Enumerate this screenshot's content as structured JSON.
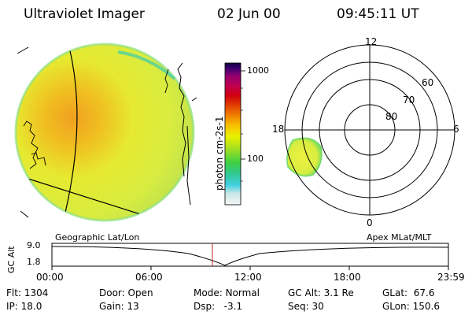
{
  "header": {
    "title": "Ultraviolet Imager",
    "date": "02 Jun 00",
    "time": "09:45:11 UT"
  },
  "colorbar": {
    "unit_label": "photon cm-2s-1",
    "ticks": [
      {
        "value": 1000,
        "label": "1000"
      },
      {
        "value": 100,
        "label": "100"
      }
    ],
    "colors": [
      "#e8f0f0",
      "#c0e0e0",
      "#40d0e0",
      "#30c890",
      "#40d040",
      "#a8e020",
      "#e8f000",
      "#f8c000",
      "#f08000",
      "#e04000",
      "#d00010",
      "#c00050",
      "#900070",
      "#400070",
      "#100040"
    ]
  },
  "polar_plot": {
    "mlt_labels": {
      "top": "12",
      "left": "18",
      "right": "6",
      "bottom": "0"
    },
    "lat_labels": [
      "60",
      "70",
      "80"
    ]
  },
  "timeline": {
    "left_caption": "Geographic Lat/Lon",
    "right_caption": "Apex MLat/MLT",
    "y_axis_label": "GC Alt",
    "y_ticks": [
      "9.0",
      "1.8"
    ],
    "x_ticks": [
      "00:00",
      "06:00",
      "12:00",
      "18:00",
      "23:59"
    ],
    "current_marker_time": "09:45"
  },
  "info": {
    "flt": {
      "label": "Flt:",
      "value": "1304"
    },
    "ip": {
      "label": "IP:",
      "value": "18.0"
    },
    "door": {
      "label": "Door:",
      "value": "Open"
    },
    "gain": {
      "label": "Gain:",
      "value": "13"
    },
    "mode": {
      "label": "Mode:",
      "value": "Normal"
    },
    "dsp": {
      "label": "Dsp:",
      "value": "-3.1"
    },
    "gcalt": {
      "label": "GC Alt:",
      "value": "3.1 Re"
    },
    "seq": {
      "label": "Seq:",
      "value": "30"
    },
    "glat": {
      "label": "GLat:",
      "value": "67.6"
    },
    "glon": {
      "label": "GLon:",
      "value": "150.6"
    }
  }
}
